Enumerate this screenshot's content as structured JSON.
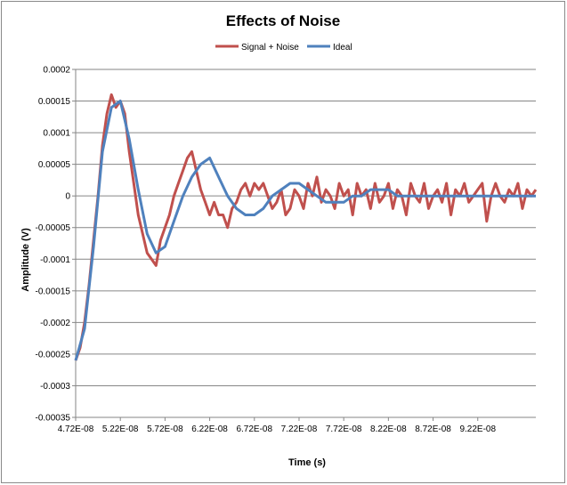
{
  "chart_data": {
    "type": "line",
    "title": "Effects of Noise",
    "xlabel": "Time (s)",
    "ylabel": "Amplitude (V)",
    "xlim": [
      4.72e-08,
      9.87e-08
    ],
    "ylim": [
      -0.00035,
      0.0002
    ],
    "x_tick_labels": [
      "4.72E-08",
      "5.22E-08",
      "5.72E-08",
      "6.22E-08",
      "6.72E-08",
      "7.22E-08",
      "7.72E-08",
      "8.22E-08",
      "8.72E-08",
      "9.22E-08"
    ],
    "x_tick_values": [
      4.72e-08,
      5.22e-08,
      5.72e-08,
      6.22e-08,
      6.72e-08,
      7.22e-08,
      7.72e-08,
      8.22e-08,
      8.72e-08,
      9.22e-08
    ],
    "y_tick_labels": [
      "0.0002",
      "0.00015",
      "0.0001",
      "0.00005",
      "0",
      "-0.00005",
      "-0.0001",
      "-0.00015",
      "-0.0002",
      "-0.00025",
      "-0.0003",
      "-0.00035"
    ],
    "y_tick_values": [
      0.0002,
      0.00015,
      0.0001,
      5e-05,
      0,
      -5e-05,
      -0.0001,
      -0.00015,
      -0.0002,
      -0.00025,
      -0.0003,
      -0.00035
    ],
    "grid": "horizontal",
    "legend_position": "top",
    "series": [
      {
        "name": "Signal + Noise",
        "color": "#c0504d",
        "x": [
          4.72e-08,
          4.77e-08,
          4.82e-08,
          4.87e-08,
          4.92e-08,
          4.97e-08,
          5.02e-08,
          5.07e-08,
          5.12e-08,
          5.17e-08,
          5.22e-08,
          5.27e-08,
          5.32e-08,
          5.37e-08,
          5.42e-08,
          5.47e-08,
          5.52e-08,
          5.57e-08,
          5.62e-08,
          5.67e-08,
          5.72e-08,
          5.77e-08,
          5.82e-08,
          5.87e-08,
          5.92e-08,
          5.97e-08,
          6.02e-08,
          6.07e-08,
          6.12e-08,
          6.17e-08,
          6.22e-08,
          6.27e-08,
          6.32e-08,
          6.37e-08,
          6.42e-08,
          6.47e-08,
          6.52e-08,
          6.57e-08,
          6.62e-08,
          6.67e-08,
          6.72e-08,
          6.77e-08,
          6.82e-08,
          6.87e-08,
          6.92e-08,
          6.97e-08,
          7.02e-08,
          7.07e-08,
          7.12e-08,
          7.17e-08,
          7.22e-08,
          7.27e-08,
          7.32e-08,
          7.37e-08,
          7.42e-08,
          7.47e-08,
          7.52e-08,
          7.57e-08,
          7.62e-08,
          7.67e-08,
          7.72e-08,
          7.77e-08,
          7.82e-08,
          7.87e-08,
          7.92e-08,
          7.97e-08,
          8.02e-08,
          8.07e-08,
          8.12e-08,
          8.17e-08,
          8.22e-08,
          8.27e-08,
          8.32e-08,
          8.37e-08,
          8.42e-08,
          8.47e-08,
          8.52e-08,
          8.57e-08,
          8.62e-08,
          8.67e-08,
          8.72e-08,
          8.77e-08,
          8.82e-08,
          8.87e-08,
          8.92e-08,
          8.97e-08,
          9.02e-08,
          9.07e-08,
          9.12e-08,
          9.17e-08,
          9.22e-08,
          9.27e-08,
          9.32e-08,
          9.37e-08,
          9.42e-08,
          9.47e-08,
          9.52e-08,
          9.57e-08,
          9.62e-08,
          9.67e-08,
          9.72e-08,
          9.77e-08,
          9.82e-08,
          9.87e-08
        ],
        "values": [
          -0.00026,
          -0.00024,
          -0.0002,
          -0.00014,
          -7e-05,
          0.0,
          8e-05,
          0.00013,
          0.00016,
          0.00014,
          0.00015,
          0.00013,
          7e-05,
          2e-05,
          -3e-05,
          -6e-05,
          -9e-05,
          -0.0001,
          -0.00011,
          -7e-05,
          -5e-05,
          -3e-05,
          0.0,
          2e-05,
          4e-05,
          6e-05,
          7e-05,
          4e-05,
          1e-05,
          -1e-05,
          -3e-05,
          -1e-05,
          -3e-05,
          -3e-05,
          -5e-05,
          -2e-05,
          -1e-05,
          1e-05,
          2e-05,
          0.0,
          2e-05,
          1e-05,
          2e-05,
          0.0,
          -2e-05,
          -1e-05,
          1e-05,
          -3e-05,
          -2e-05,
          1e-05,
          0.0,
          -2e-05,
          2e-05,
          0.0,
          3e-05,
          -1e-05,
          1e-05,
          0.0,
          -2e-05,
          2e-05,
          0.0,
          1e-05,
          -3e-05,
          2e-05,
          0.0,
          1e-05,
          -2e-05,
          2e-05,
          -1e-05,
          0.0,
          2e-05,
          -2e-05,
          1e-05,
          0.0,
          -3e-05,
          2e-05,
          0.0,
          -1e-05,
          2e-05,
          -2e-05,
          0.0,
          1e-05,
          -1e-05,
          2e-05,
          -3e-05,
          1e-05,
          0.0,
          2e-05,
          -1e-05,
          0.0,
          1e-05,
          2e-05,
          -4e-05,
          0.0,
          2e-05,
          0.0,
          -1e-05,
          1e-05,
          0.0,
          2e-05,
          -2e-05,
          1e-05,
          0.0,
          1e-05
        ]
      },
      {
        "name": "Ideal",
        "color": "#4f81bd",
        "x": [
          4.72e-08,
          4.82e-08,
          4.92e-08,
          5.02e-08,
          5.12e-08,
          5.22e-08,
          5.32e-08,
          5.42e-08,
          5.52e-08,
          5.62e-08,
          5.72e-08,
          5.82e-08,
          5.92e-08,
          6.02e-08,
          6.12e-08,
          6.22e-08,
          6.32e-08,
          6.42e-08,
          6.52e-08,
          6.62e-08,
          6.72e-08,
          6.82e-08,
          6.92e-08,
          7.02e-08,
          7.12e-08,
          7.22e-08,
          7.32e-08,
          7.42e-08,
          7.52e-08,
          7.62e-08,
          7.72e-08,
          7.82e-08,
          7.92e-08,
          8.02e-08,
          8.12e-08,
          8.22e-08,
          8.32e-08,
          8.42e-08,
          8.52e-08,
          8.62e-08,
          8.72e-08,
          8.82e-08,
          8.92e-08,
          9.02e-08,
          9.12e-08,
          9.22e-08,
          9.32e-08,
          9.42e-08,
          9.52e-08,
          9.62e-08,
          9.72e-08,
          9.82e-08,
          9.87e-08
        ],
        "values": [
          -0.00026,
          -0.00021,
          -8e-05,
          7e-05,
          0.00014,
          0.00015,
          9e-05,
          1e-05,
          -6e-05,
          -9e-05,
          -8e-05,
          -4e-05,
          0.0,
          3e-05,
          5e-05,
          6e-05,
          3e-05,
          0.0,
          -2e-05,
          -3e-05,
          -3e-05,
          -2e-05,
          0.0,
          1e-05,
          2e-05,
          2e-05,
          1e-05,
          0.0,
          -1e-05,
          -1e-05,
          -1e-05,
          0.0,
          0.0,
          1e-05,
          1e-05,
          1e-05,
          0.0,
          0.0,
          0.0,
          0.0,
          0.0,
          0.0,
          0.0,
          0.0,
          0.0,
          0.0,
          0.0,
          0.0,
          0.0,
          0.0,
          0.0,
          0.0,
          0.0
        ]
      }
    ]
  }
}
